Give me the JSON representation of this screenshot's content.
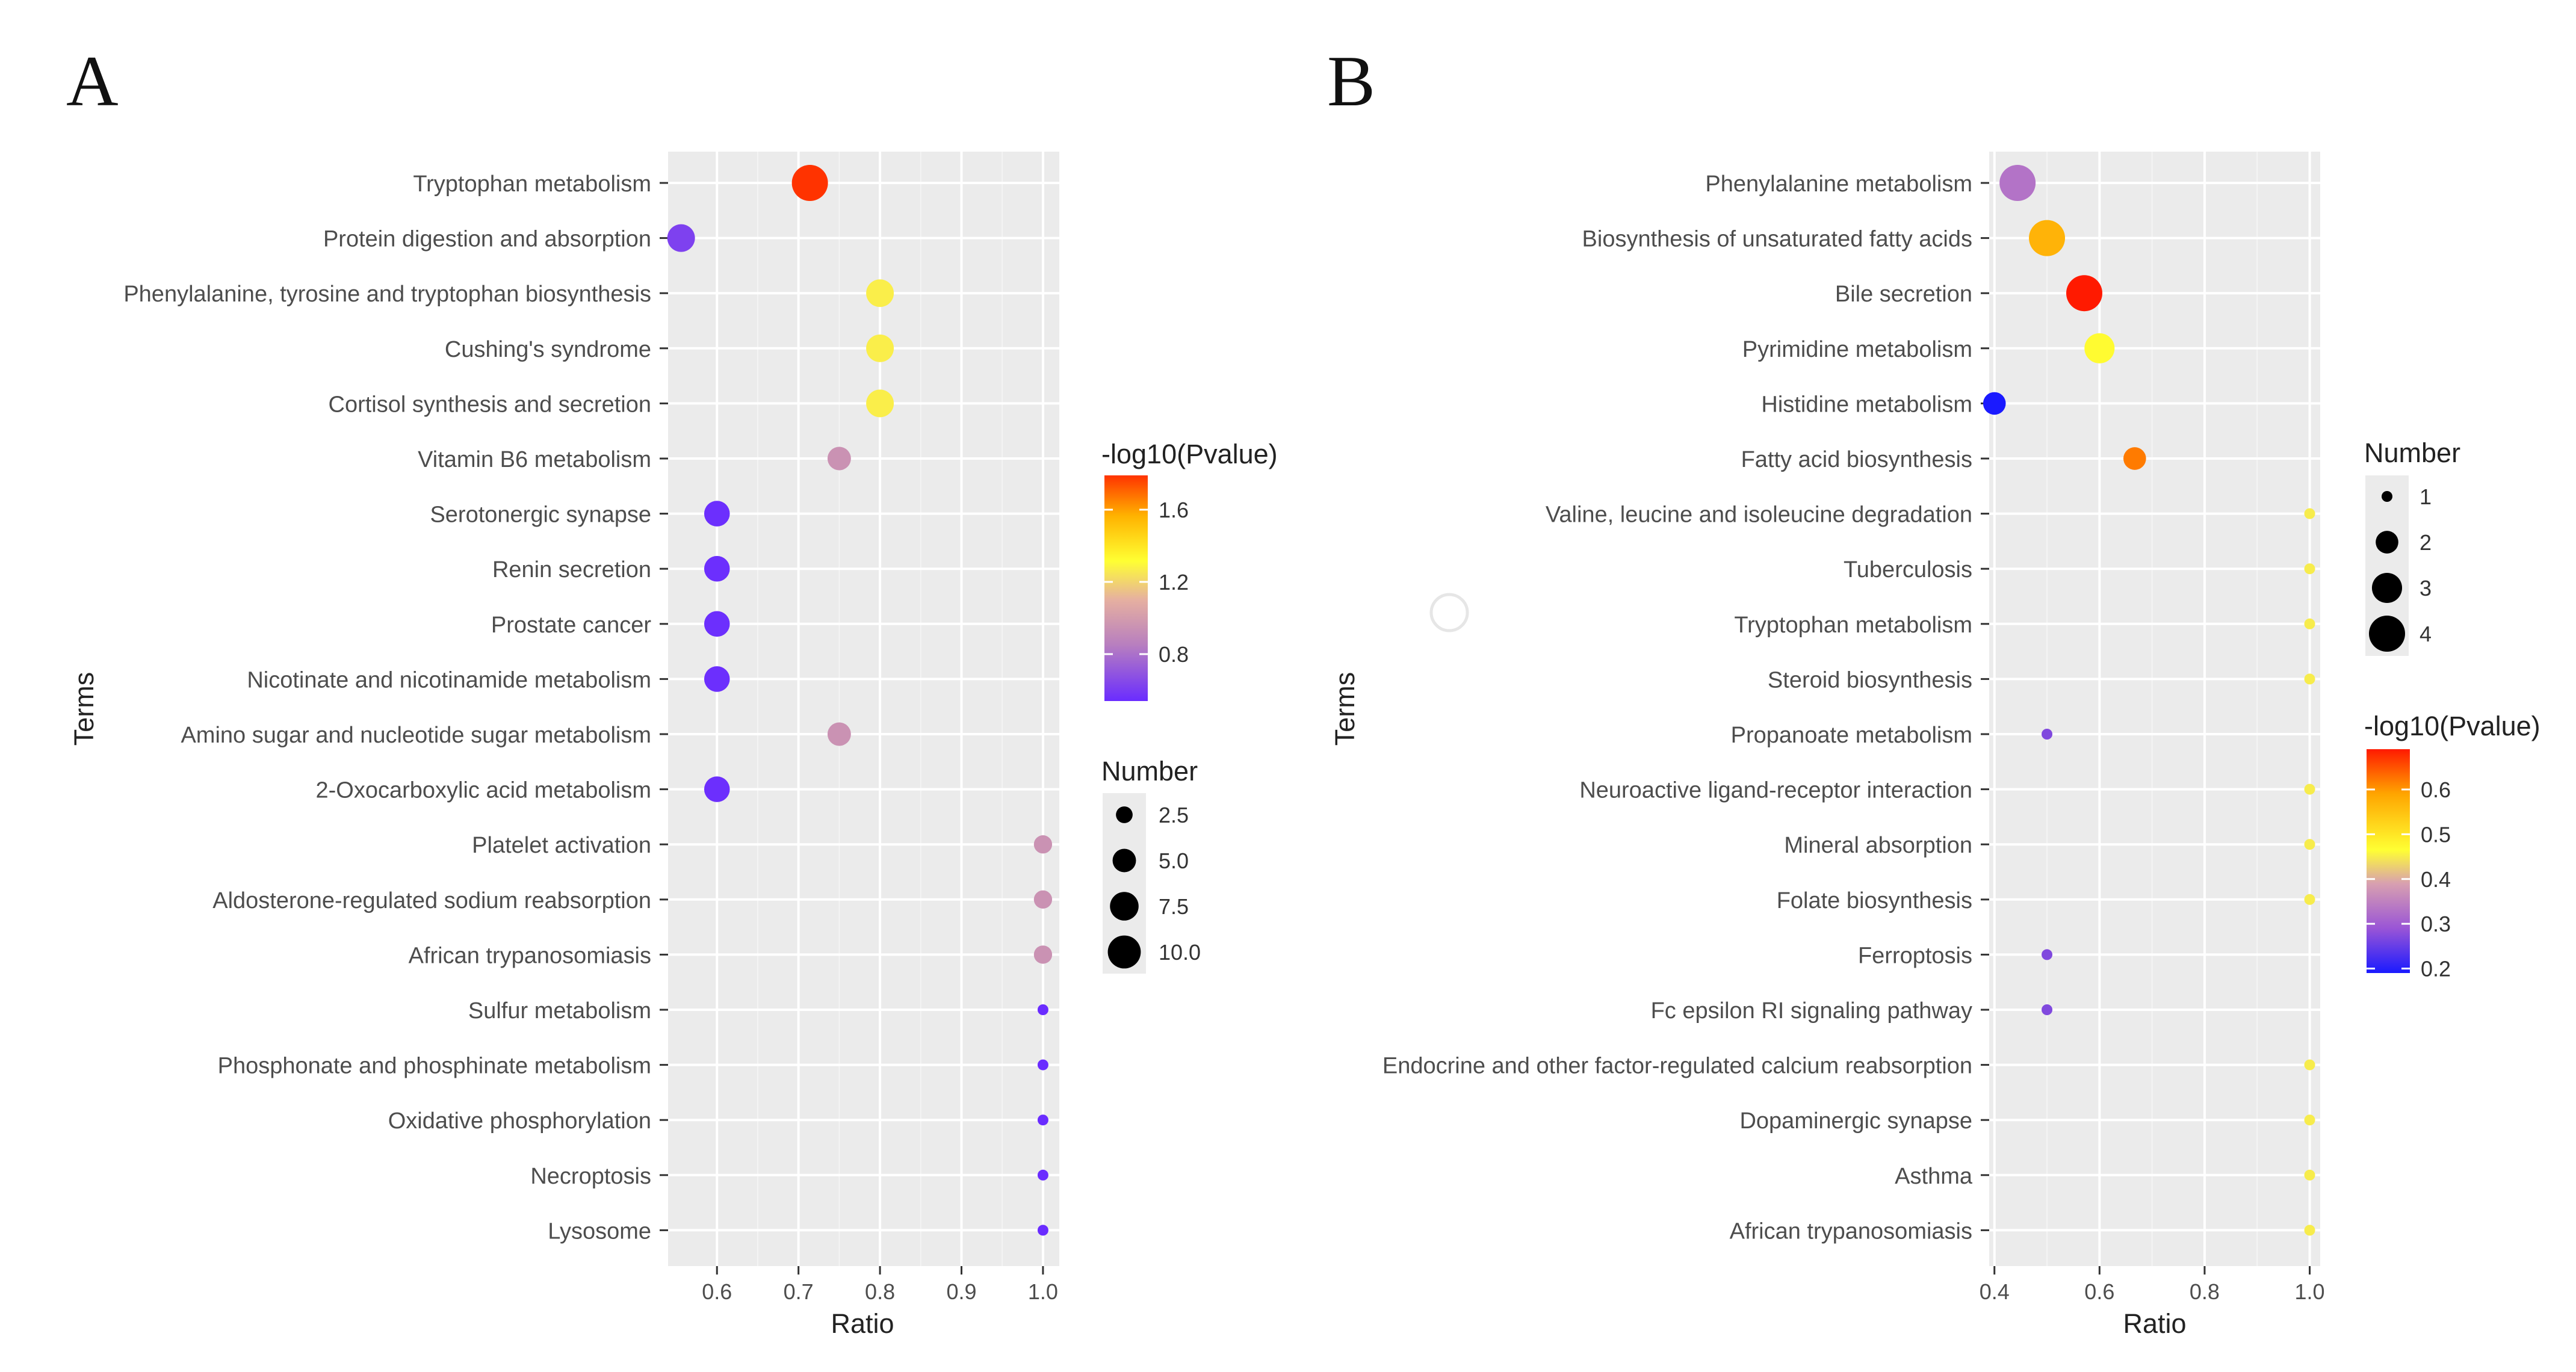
{
  "chart_data": [
    {
      "type": "scatter",
      "panel_label": "A",
      "xlabel": "Ratio",
      "ylabel": "Terms",
      "xlim": [
        0.54,
        1.02
      ],
      "xticks": [
        0.6,
        0.7,
        0.8,
        0.9,
        1.0
      ],
      "xtick_labels": [
        "0.6",
        "0.7",
        "0.8",
        "0.9",
        "1.0"
      ],
      "grid": true,
      "color_legend": {
        "title": "-log10(Pvalue)",
        "ticks": [
          0.8,
          1.2,
          1.6
        ],
        "tick_labels": [
          "0.8",
          "1.2",
          "1.6"
        ],
        "range": [
          0.54,
          1.79
        ]
      },
      "size_legend": {
        "title": "Number",
        "values": [
          2.5,
          5.0,
          7.5,
          10.0
        ],
        "labels": [
          "2.5",
          "5.0",
          "7.5",
          "10.0"
        ],
        "range": [
          1,
          12
        ]
      },
      "points": [
        {
          "term": "Tryptophan metabolism",
          "ratio": 0.714,
          "neglog10p": 1.79,
          "number": 12
        },
        {
          "term": "Protein digestion and absorption",
          "ratio": 0.556,
          "neglog10p": 0.62,
          "number": 7
        },
        {
          "term": "Phenylalanine, tyrosine and tryptophan biosynthesis",
          "ratio": 0.8,
          "neglog10p": 1.27,
          "number": 7
        },
        {
          "term": "Cushing's syndrome",
          "ratio": 0.8,
          "neglog10p": 1.27,
          "number": 7
        },
        {
          "term": "Cortisol synthesis and secretion",
          "ratio": 0.8,
          "neglog10p": 1.27,
          "number": 7
        },
        {
          "term": "Vitamin B6 metabolism",
          "ratio": 0.75,
          "neglog10p": 0.95,
          "number": 5
        },
        {
          "term": "Serotonergic synapse",
          "ratio": 0.6,
          "neglog10p": 0.55,
          "number": 6
        },
        {
          "term": "Renin secretion",
          "ratio": 0.6,
          "neglog10p": 0.55,
          "number": 6
        },
        {
          "term": "Prostate cancer",
          "ratio": 0.6,
          "neglog10p": 0.55,
          "number": 6
        },
        {
          "term": "Nicotinate and nicotinamide metabolism",
          "ratio": 0.6,
          "neglog10p": 0.55,
          "number": 6
        },
        {
          "term": "Amino sugar and nucleotide sugar metabolism",
          "ratio": 0.75,
          "neglog10p": 0.95,
          "number": 5
        },
        {
          "term": "2-Oxocarboxylic acid metabolism",
          "ratio": 0.6,
          "neglog10p": 0.55,
          "number": 6
        },
        {
          "term": "Platelet activation",
          "ratio": 1.0,
          "neglog10p": 0.95,
          "number": 3
        },
        {
          "term": "Aldosterone-regulated sodium reabsorption",
          "ratio": 1.0,
          "neglog10p": 0.95,
          "number": 3
        },
        {
          "term": "African trypanosomiasis",
          "ratio": 1.0,
          "neglog10p": 0.95,
          "number": 3
        },
        {
          "term": "Sulfur metabolism",
          "ratio": 1.0,
          "neglog10p": 0.54,
          "number": 1
        },
        {
          "term": "Phosphonate and phosphinate metabolism",
          "ratio": 1.0,
          "neglog10p": 0.54,
          "number": 1
        },
        {
          "term": "Oxidative phosphorylation",
          "ratio": 1.0,
          "neglog10p": 0.54,
          "number": 1
        },
        {
          "term": "Necroptosis",
          "ratio": 1.0,
          "neglog10p": 0.54,
          "number": 1
        },
        {
          "term": "Lysosome",
          "ratio": 1.0,
          "neglog10p": 0.54,
          "number": 1
        }
      ]
    },
    {
      "type": "scatter",
      "panel_label": "B",
      "xlabel": "Ratio",
      "ylabel": "Terms",
      "xlim": [
        0.39,
        1.02
      ],
      "xticks": [
        0.4,
        0.6,
        0.8,
        1.0
      ],
      "xtick_labels": [
        "0.4",
        "0.6",
        "0.8",
        "1.0"
      ],
      "grid": true,
      "size_legend": {
        "title": "Number",
        "values": [
          1,
          2,
          3,
          4
        ],
        "labels": [
          "1",
          "2",
          "3",
          "4"
        ],
        "range": [
          1,
          4
        ]
      },
      "color_legend": {
        "title": "-log10(Pvalue)",
        "ticks": [
          0.2,
          0.3,
          0.4,
          0.5,
          0.6
        ],
        "tick_labels": [
          "0.2",
          "0.3",
          "0.4",
          "0.5",
          "0.6"
        ],
        "range": [
          0.19,
          0.69
        ]
      },
      "points": [
        {
          "term": "Phenylalanine metabolism",
          "ratio": 0.444,
          "neglog10p": 0.33,
          "number": 4
        },
        {
          "term": "Biosynthesis of unsaturated fatty acids",
          "ratio": 0.5,
          "neglog10p": 0.57,
          "number": 4
        },
        {
          "term": "Bile secretion",
          "ratio": 0.571,
          "neglog10p": 0.69,
          "number": 4
        },
        {
          "term": "Pyrimidine metabolism",
          "ratio": 0.6,
          "neglog10p": 0.47,
          "number": 3
        },
        {
          "term": "Histidine metabolism",
          "ratio": 0.4,
          "neglog10p": 0.19,
          "number": 2
        },
        {
          "term": "Fatty acid biosynthesis",
          "ratio": 0.667,
          "neglog10p": 0.62,
          "number": 2
        },
        {
          "term": "Valine, leucine and isoleucine degradation",
          "ratio": 1.0,
          "neglog10p": 0.45,
          "number": 1
        },
        {
          "term": "Tuberculosis",
          "ratio": 1.0,
          "neglog10p": 0.45,
          "number": 1
        },
        {
          "term": "Tryptophan metabolism",
          "ratio": 1.0,
          "neglog10p": 0.45,
          "number": 1
        },
        {
          "term": "Steroid biosynthesis",
          "ratio": 1.0,
          "neglog10p": 0.45,
          "number": 1
        },
        {
          "term": "Propanoate metabolism",
          "ratio": 0.5,
          "neglog10p": 0.27,
          "number": 1
        },
        {
          "term": "Neuroactive ligand-receptor interaction",
          "ratio": 1.0,
          "neglog10p": 0.45,
          "number": 1
        },
        {
          "term": "Mineral absorption",
          "ratio": 1.0,
          "neglog10p": 0.45,
          "number": 1
        },
        {
          "term": "Folate biosynthesis",
          "ratio": 1.0,
          "neglog10p": 0.45,
          "number": 1
        },
        {
          "term": "Ferroptosis",
          "ratio": 0.5,
          "neglog10p": 0.27,
          "number": 1
        },
        {
          "term": "Fc epsilon RI signaling pathway",
          "ratio": 0.5,
          "neglog10p": 0.27,
          "number": 1
        },
        {
          "term": "Endocrine and other factor-regulated calcium reabsorption",
          "ratio": 1.0,
          "neglog10p": 0.45,
          "number": 1
        },
        {
          "term": "Dopaminergic synapse",
          "ratio": 1.0,
          "neglog10p": 0.45,
          "number": 1
        },
        {
          "term": "Asthma",
          "ratio": 1.0,
          "neglog10p": 0.45,
          "number": 1
        },
        {
          "term": "African trypanosomiasis",
          "ratio": 1.0,
          "neglog10p": 0.45,
          "number": 1
        }
      ]
    }
  ]
}
